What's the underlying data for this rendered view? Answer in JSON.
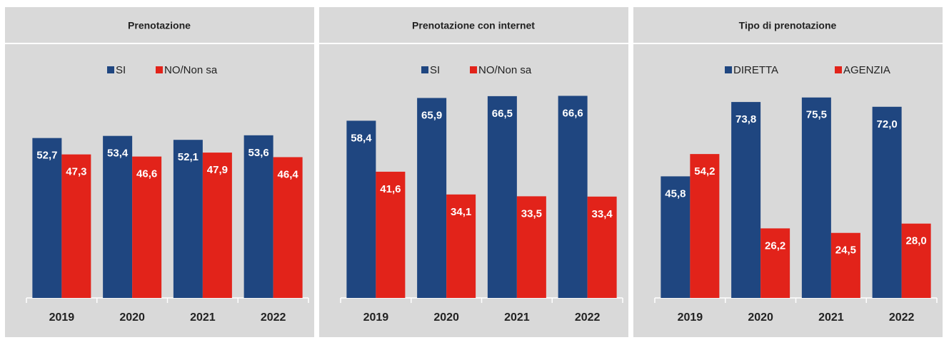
{
  "chart_data": [
    {
      "type": "bar",
      "title": "Prenotazione",
      "categories": [
        "2019",
        "2020",
        "2021",
        "2022"
      ],
      "series": [
        {
          "name": "SI",
          "color": "#1f4680",
          "values": [
            52.7,
            53.4,
            52.1,
            53.6
          ],
          "value_labels": [
            "52,7",
            "53,4",
            "52,1",
            "53,6"
          ]
        },
        {
          "name": "NO/Non sa",
          "color": "#e2231a",
          "values": [
            47.3,
            46.6,
            47.9,
            46.4
          ],
          "value_labels": [
            "47,3",
            "46,6",
            "47,9",
            "46,4"
          ]
        }
      ],
      "ylim": [
        0,
        70
      ]
    },
    {
      "type": "bar",
      "title": "Prenotazione con internet",
      "categories": [
        "2019",
        "2020",
        "2021",
        "2022"
      ],
      "series": [
        {
          "name": "SI",
          "color": "#1f4680",
          "values": [
            58.4,
            65.9,
            66.5,
            66.6
          ],
          "value_labels": [
            "58,4",
            "65,9",
            "66,5",
            "66,6"
          ]
        },
        {
          "name": "NO/Non sa",
          "color": "#e2231a",
          "values": [
            41.6,
            34.1,
            33.5,
            33.4
          ],
          "value_labels": [
            "41,6",
            "34,1",
            "33,5",
            "33,4"
          ]
        }
      ],
      "ylim": [
        0,
        70
      ]
    },
    {
      "type": "bar",
      "title": "Tipo di prenotazione",
      "categories": [
        "2019",
        "2020",
        "2021",
        "2022"
      ],
      "series": [
        {
          "name": "DIRETTA",
          "color": "#1f4680",
          "values": [
            45.8,
            73.8,
            75.5,
            72.0
          ],
          "value_labels": [
            "45,8",
            "73,8",
            "75,5",
            "72,0"
          ]
        },
        {
          "name": "AGENZIA",
          "color": "#e2231a",
          "values": [
            54.2,
            26.2,
            24.5,
            28.0
          ],
          "value_labels": [
            "54,2",
            "26,2",
            "24,5",
            "28,0"
          ]
        }
      ],
      "ylim": [
        0,
        80
      ]
    }
  ]
}
